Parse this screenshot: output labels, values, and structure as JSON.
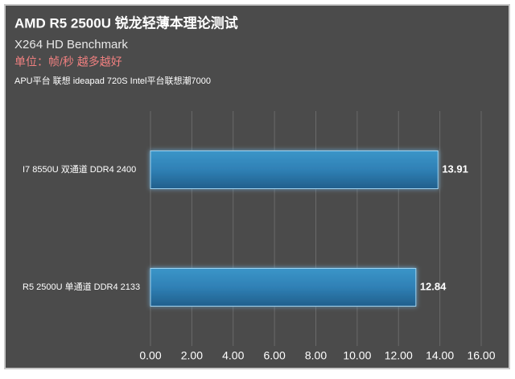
{
  "chart_data": {
    "type": "barh",
    "title": "AMD R5 2500U 锐龙轻薄本理论测试",
    "subtitle": "X264  HD Benchmark",
    "unit_note": "单位：帧/秒 越多越好",
    "legend_note": "APU平台 联想 ideapad 720S Intel平台联想潮7000",
    "categories": [
      "I7 8550U 双通道 DDR4 2400",
      "R5 2500U 单通道 DDR4 2133"
    ],
    "values": [
      13.91,
      12.84
    ],
    "color": "#2f80b5",
    "xlim": [
      0,
      16
    ],
    "xticks": [
      {
        "value": 0,
        "label": "0.00"
      },
      {
        "value": 2,
        "label": "2.00"
      },
      {
        "value": 4,
        "label": "4.00"
      },
      {
        "value": 6,
        "label": "6.00"
      },
      {
        "value": 8,
        "label": "8.00"
      },
      {
        "value": 10,
        "label": "10.00"
      },
      {
        "value": 12,
        "label": "12.00"
      },
      {
        "value": 14,
        "label": "14.00"
      },
      {
        "value": 16,
        "label": "16.00"
      }
    ],
    "grid": true
  }
}
